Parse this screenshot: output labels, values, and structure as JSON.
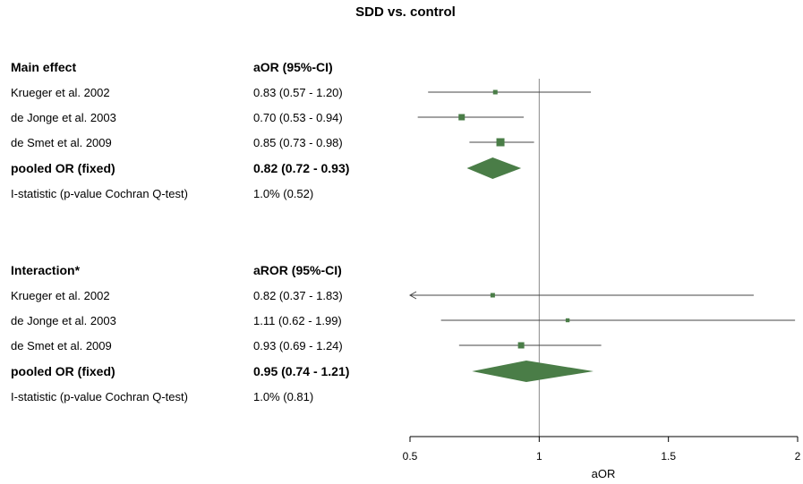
{
  "chart_data": {
    "type": "forest",
    "title": "SDD vs. control",
    "xlabel": "aOR",
    "xlim": [
      0.5,
      2
    ],
    "xticks": [
      "0.5",
      "1",
      "1.5",
      "2"
    ],
    "reference_line": 1,
    "sections": [
      {
        "header": "Main effect",
        "value_header": "aOR (95%-CI)",
        "studies": [
          {
            "label": "Krueger et al. 2002",
            "text": "0.83 (0.57 - 1.20)",
            "est": 0.83,
            "lo": 0.57,
            "hi": 1.2,
            "weight": 1
          },
          {
            "label": "de Jonge et al. 2003",
            "text": "0.70 (0.53 - 0.94)",
            "est": 0.7,
            "lo": 0.53,
            "hi": 0.94,
            "weight": 2
          },
          {
            "label": "de Smet et al. 2009",
            "text": "0.85 (0.73 - 0.98)",
            "est": 0.85,
            "lo": 0.73,
            "hi": 0.98,
            "weight": 3
          }
        ],
        "pooled": {
          "label": "pooled OR (fixed)",
          "text": "0.82 (0.72 - 0.93)",
          "est": 0.82,
          "lo": 0.72,
          "hi": 0.93
        },
        "het": {
          "label": "I-statistic (p-value Cochran Q-test)",
          "text": "1.0% (0.52)"
        }
      },
      {
        "header": "Interaction*",
        "value_header": "aROR (95%-CI)",
        "studies": [
          {
            "label": "Krueger et al. 2002",
            "text": "0.82 (0.37 - 1.83)",
            "est": 0.82,
            "lo": 0.37,
            "hi": 1.83,
            "weight": 1
          },
          {
            "label": "de Jonge et al. 2003",
            "text": "1.11 (0.62 - 1.99)",
            "est": 1.11,
            "lo": 0.62,
            "hi": 1.99,
            "weight": 0.7
          },
          {
            "label": "de Smet et al. 2009",
            "text": "0.93 (0.69 - 1.24)",
            "est": 0.93,
            "lo": 0.69,
            "hi": 1.24,
            "weight": 2
          }
        ],
        "pooled": {
          "label": "pooled OR (fixed)",
          "text": "0.95 (0.74 - 1.21)",
          "est": 0.95,
          "lo": 0.74,
          "hi": 1.21
        },
        "het": {
          "label": "I-statistic (p-value Cochran Q-test)",
          "text": "1.0% (0.81)"
        }
      }
    ],
    "colors": {
      "marker": "#4a7d47",
      "line": "#444444",
      "ref": "#888888"
    }
  }
}
